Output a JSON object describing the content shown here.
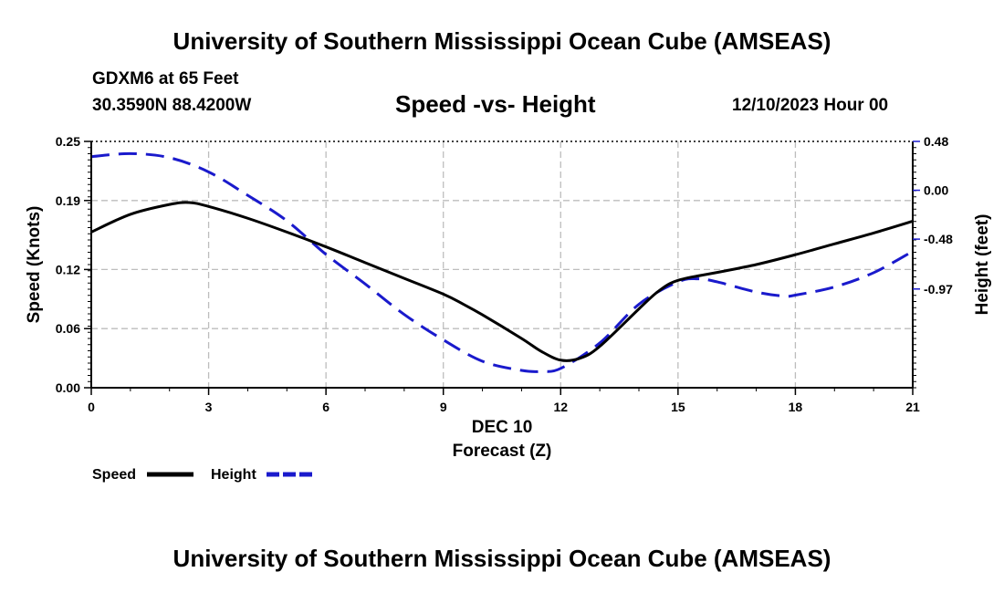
{
  "header": {
    "title": "University of Southern Mississippi Ocean Cube (AMSEAS)",
    "station": "GDXM6 at 65 Feet",
    "coords": "30.3590N  88.4200W",
    "subtitle": "Speed -vs- Height",
    "datetime": "12/10/2023 Hour 00"
  },
  "footer": {
    "title": "University of Southern Mississippi Ocean Cube (AMSEAS)"
  },
  "chart_data": {
    "type": "line",
    "title": "Speed -vs- Height",
    "xlabel_date": "DEC 10",
    "xlabel": "Forecast (Z)",
    "ylabel": "Speed (Knots)",
    "y2label": "Height (feet)",
    "xlim": [
      0,
      21
    ],
    "ylim": [
      0,
      0.25
    ],
    "y2lim": [
      -1.94,
      0.48
    ],
    "grid": true,
    "legend_position": "bottom-left",
    "x_ticks": [
      0,
      3,
      6,
      9,
      12,
      15,
      18,
      21
    ],
    "x_tick_labels": [
      "0",
      "3",
      "6",
      "9",
      "12",
      "15",
      "18",
      "21"
    ],
    "y_ticks": [
      0,
      0.06,
      0.12,
      0.19,
      0.25
    ],
    "y_tick_labels": [
      "0.00",
      "0.06",
      "0.12",
      "0.19",
      "0.25"
    ],
    "y2_ticks": [
      -0.97,
      -0.48,
      0.0,
      0.48
    ],
    "y2_tick_labels": [
      "-0.97",
      "-0.48",
      "0.00",
      "0.48"
    ],
    "series": [
      {
        "name": "Speed",
        "axis": "left",
        "color": "#000000",
        "style": "solid",
        "x": [
          0,
          1,
          2,
          2.5,
          3,
          4,
          5,
          6,
          7,
          8,
          9,
          9.5,
          10,
          11,
          11.5,
          12,
          12.5,
          13,
          14,
          14.5,
          15,
          16,
          17,
          18,
          19,
          20,
          21
        ],
        "values": [
          0.158,
          0.176,
          0.186,
          0.188,
          0.184,
          0.172,
          0.158,
          0.143,
          0.127,
          0.111,
          0.095,
          0.085,
          0.074,
          0.05,
          0.037,
          0.028,
          0.03,
          0.042,
          0.08,
          0.098,
          0.109,
          0.117,
          0.125,
          0.135,
          0.146,
          0.157,
          0.169
        ]
      },
      {
        "name": "Height",
        "axis": "right",
        "color": "#1a1acc",
        "style": "dashed",
        "x": [
          0,
          1,
          2,
          3,
          4,
          5,
          6,
          7,
          8,
          9,
          10,
          11,
          11.5,
          12,
          13,
          14,
          15,
          15.5,
          16,
          17,
          17.7,
          18,
          19,
          20,
          21
        ],
        "values": [
          0.33,
          0.36,
          0.32,
          0.18,
          -0.05,
          -0.3,
          -0.63,
          -0.92,
          -1.22,
          -1.47,
          -1.68,
          -1.77,
          -1.78,
          -1.75,
          -1.5,
          -1.12,
          -0.9,
          -0.87,
          -0.9,
          -1.0,
          -1.04,
          -1.03,
          -0.95,
          -0.81,
          -0.6
        ]
      }
    ]
  }
}
